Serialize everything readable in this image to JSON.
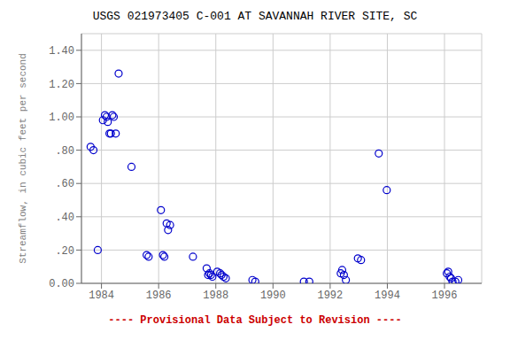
{
  "chart_data": {
    "type": "scatter",
    "title": "USGS 021973405 C-001 AT SAVANNAH RIVER SITE, SC",
    "y_label": "Streamflow, in cubic feet per second",
    "annotations": [
      {
        "text": "---- Provisional Data Subject to Revision ----",
        "color": "#cc0000"
      }
    ],
    "x": [
      1983.62,
      1983.72,
      1983.87,
      1984.05,
      1984.12,
      1984.18,
      1984.22,
      1984.28,
      1984.33,
      1984.38,
      1984.43,
      1984.5,
      1984.6,
      1985.05,
      1985.58,
      1985.65,
      1986.08,
      1986.15,
      1986.2,
      1986.28,
      1986.33,
      1986.4,
      1987.2,
      1987.68,
      1987.73,
      1987.78,
      1987.83,
      1987.88,
      1988.05,
      1988.15,
      1988.2,
      1988.27,
      1988.35,
      1989.28,
      1989.38,
      1991.08,
      1991.27,
      1992.37,
      1992.42,
      1992.48,
      1992.55,
      1992.97,
      1993.08,
      1993.7,
      1993.98,
      1996.08,
      1996.13,
      1996.18,
      1996.23,
      1996.28,
      1996.38,
      1996.48
    ],
    "values": [
      0.82,
      0.8,
      0.2,
      0.98,
      1.01,
      1.0,
      0.97,
      0.9,
      0.9,
      1.01,
      1.0,
      0.9,
      1.26,
      0.7,
      0.17,
      0.16,
      0.44,
      0.17,
      0.16,
      0.36,
      0.32,
      0.35,
      0.16,
      0.09,
      0.05,
      0.06,
      0.05,
      0.04,
      0.07,
      0.06,
      0.05,
      0.04,
      0.03,
      0.02,
      0.01,
      0.01,
      0.01,
      0.06,
      0.08,
      0.05,
      0.02,
      0.15,
      0.14,
      0.78,
      0.56,
      0.06,
      0.07,
      0.04,
      0.03,
      0.01,
      0.01,
      0.02
    ],
    "color": "#0000cc",
    "marker": "open_circle",
    "xlim": [
      1983.3,
      1997.3
    ],
    "ylim": [
      0.0,
      1.5
    ],
    "xticks": [
      1984,
      1986,
      1988,
      1990,
      1992,
      1994,
      1996
    ],
    "yticks": [
      {
        "value": 0.0,
        "label": "0.00"
      },
      {
        "value": 0.2,
        "label": ".20"
      },
      {
        "value": 0.4,
        "label": ".40"
      },
      {
        "value": 0.6,
        "label": ".60"
      },
      {
        "value": 0.8,
        "label": ".80"
      },
      {
        "value": 1.0,
        "label": "1.00"
      },
      {
        "value": 1.2,
        "label": "1.20"
      },
      {
        "value": 1.4,
        "label": "1.40"
      }
    ],
    "grid": true
  }
}
